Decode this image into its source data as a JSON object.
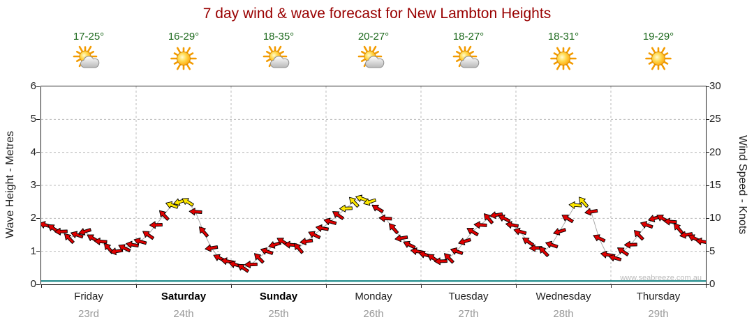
{
  "title": "7 day wind & wave forecast for New Lambton Heights",
  "watermark": "www.seabreeze.com.au",
  "colors": {
    "title": "#990000",
    "temps": "#1f6b1f",
    "wind": "#e00000",
    "wind_high": "#ffe800",
    "wave": "#007a7a",
    "grid": "#bbbbbb",
    "axis": "#222222",
    "day_label": "#222222",
    "date_label": "#999999",
    "watermark": "#bbbbbb"
  },
  "days": [
    {
      "name": "Friday",
      "date": "23rd",
      "temp": "17-25°",
      "icon": "sun-cloud",
      "bold": false
    },
    {
      "name": "Saturday",
      "date": "24th",
      "temp": "16-29°",
      "icon": "sun",
      "bold": true
    },
    {
      "name": "Sunday",
      "date": "25th",
      "temp": "18-35°",
      "icon": "sun-cloud",
      "bold": true
    },
    {
      "name": "Monday",
      "date": "26th",
      "temp": "20-27°",
      "icon": "sun-cloud",
      "bold": false
    },
    {
      "name": "Tuesday",
      "date": "27th",
      "temp": "18-27°",
      "icon": "sun-cloud",
      "bold": false
    },
    {
      "name": "Wednesday",
      "date": "28th",
      "temp": "18-31°",
      "icon": "sun",
      "bold": false
    },
    {
      "name": "Thursday",
      "date": "29th",
      "temp": "19-29°",
      "icon": "sun",
      "bold": false
    }
  ],
  "chart_data": {
    "type": "line",
    "title": "7 day wind & wave forecast for New Lambton Heights",
    "x_axis": {
      "categories": [
        "Friday 23rd",
        "Saturday 24th",
        "Sunday 25th",
        "Monday 26th",
        "Tuesday 27th",
        "Wednesday 28th",
        "Thursday 29th"
      ],
      "points_per_day": 12
    },
    "y_left": {
      "label": "Wave Height - Metres",
      "range": [
        0,
        6
      ],
      "ticks": [
        0,
        1,
        2,
        3,
        4,
        5,
        6
      ]
    },
    "y_right": {
      "label": "Wind Speed - Knots",
      "range": [
        0,
        30
      ],
      "ticks": [
        0,
        5,
        10,
        15,
        20,
        25,
        30
      ]
    },
    "grid": {
      "h_dashed_at_metres": [
        1,
        2,
        3,
        4,
        5
      ],
      "v_dashed_at_day_boundaries": true
    },
    "series": [
      {
        "name": "Wind Speed",
        "unit": "knots",
        "style": "wind-arrows",
        "values": [
          9,
          8.5,
          8,
          7,
          7.5,
          8,
          7,
          6.5,
          5.5,
          5,
          5.5,
          6,
          6.5,
          7.5,
          9,
          10.5,
          12,
          12.5,
          12.5,
          11,
          8,
          5.5,
          4,
          3.5,
          3,
          2.5,
          3,
          4,
          5,
          6,
          6.5,
          6,
          5.5,
          6.5,
          7.5,
          8.5,
          9.5,
          10.5,
          11.5,
          12.5,
          13,
          12.5,
          11.5,
          10,
          8.5,
          7,
          6,
          5,
          4.5,
          4,
          3.5,
          4,
          5,
          6.5,
          8,
          9,
          10,
          10.5,
          10,
          9,
          8,
          6.5,
          5.5,
          5,
          6,
          8,
          10,
          12,
          12.5,
          11,
          7,
          4.5,
          4,
          5,
          6,
          7.5,
          9,
          10,
          10,
          9.5,
          8.5,
          7.5,
          7,
          6.5
        ],
        "high_wind_indices": [
          16,
          17,
          18,
          38,
          39,
          40,
          41,
          67,
          68
        ],
        "direction_pattern_deg": [
          196,
          214,
          178,
          226,
          199,
          163,
          211,
          184,
          229,
          171,
          206,
          190
        ]
      },
      {
        "name": "Wave Height",
        "unit": "m",
        "style": "line",
        "approx_constant_value": 0.1
      }
    ]
  }
}
